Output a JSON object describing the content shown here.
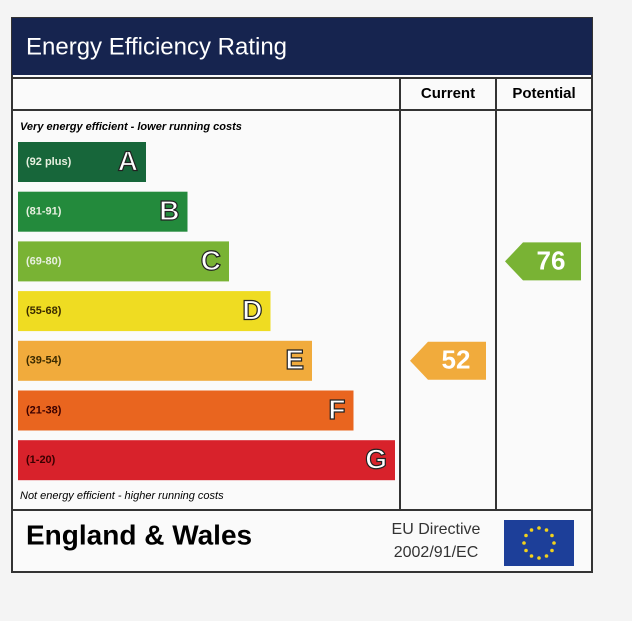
{
  "chart_data": {
    "type": "epc",
    "title": "Energy Efficiency Rating",
    "columns": [
      "Current",
      "Potential"
    ],
    "top_note": "Very energy efficient - lower running costs",
    "bottom_note": "Not energy efficient - higher running costs",
    "bands": [
      {
        "range": "(92 plus)",
        "letter": "A",
        "color": "#17663a"
      },
      {
        "range": "(81-91)",
        "letter": "B",
        "color": "#238a3c"
      },
      {
        "range": "(69-80)",
        "letter": "C",
        "color": "#79b334"
      },
      {
        "range": "(55-68)",
        "letter": "D",
        "color": "#efdc22"
      },
      {
        "range": "(39-54)",
        "letter": "E",
        "color": "#f1ab3c"
      },
      {
        "range": "(21-38)",
        "letter": "F",
        "color": "#e9651f"
      },
      {
        "range": "(1-20)",
        "letter": "G",
        "color": "#d8222b"
      }
    ],
    "current": 52,
    "potential": 76,
    "region": "England & Wales",
    "directive": [
      "EU Directive",
      "2002/91/EC"
    ]
  }
}
